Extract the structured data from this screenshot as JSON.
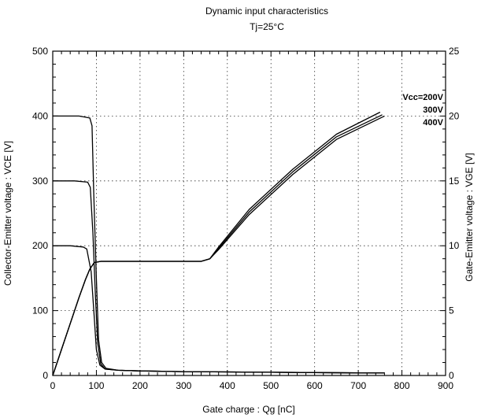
{
  "chart_data": {
    "type": "line",
    "title": "Dynamic  input  characteristics",
    "subtitle": "Tj=25°C",
    "xlabel": "Gate  charge  :  Qg  [nC]",
    "ylabel_left": "Collector-Emitter  voltage  :  VCE  [V]",
    "ylabel_right": "Gate-Emitter  voltage  :  VGE  [V]",
    "xlim": [
      0,
      900
    ],
    "ylim_left": [
      0,
      500
    ],
    "ylim_right": [
      0,
      25
    ],
    "x_ticks": [
      "0",
      "100",
      "200",
      "300",
      "400",
      "500",
      "600",
      "700",
      "800",
      "900"
    ],
    "y_left_ticks": [
      "0",
      "100",
      "200",
      "300",
      "400",
      "500"
    ],
    "y_right_ticks": [
      "0",
      "5",
      "10",
      "15",
      "20",
      "25"
    ],
    "grid": true,
    "annotations": [
      "Vcc=200V",
      "300V",
      "400V"
    ],
    "series": [
      {
        "axis": "left",
        "x": [
          0,
          40,
          70,
          78,
          88,
          95,
          100,
          108,
          120,
          150,
          200,
          300,
          500,
          700,
          760
        ],
        "y": [
          200,
          200,
          198,
          195,
          160,
          90,
          40,
          16,
          10,
          8,
          7,
          6,
          5,
          4,
          4
        ]
      },
      {
        "axis": "left",
        "x": [
          0,
          50,
          80,
          86,
          92,
          98,
          103,
          110,
          120,
          150,
          200,
          300,
          500,
          700,
          760
        ],
        "y": [
          300,
          300,
          298,
          290,
          220,
          120,
          50,
          18,
          10,
          8,
          7,
          6,
          5,
          4,
          4
        ]
      },
      {
        "axis": "left",
        "x": [
          0,
          60,
          85,
          90,
          94,
          100,
          105,
          112,
          122,
          150,
          200,
          300,
          500,
          700,
          760
        ],
        "y": [
          400,
          400,
          397,
          385,
          280,
          150,
          55,
          20,
          11,
          8,
          7,
          6,
          5,
          4,
          4
        ]
      },
      {
        "axis": "right",
        "x": [
          0,
          20,
          40,
          60,
          75,
          85,
          95,
          110,
          150,
          250,
          340,
          360,
          380,
          450,
          550,
          650,
          750
        ],
        "y": [
          0,
          2.0,
          4.0,
          6.0,
          7.4,
          8.2,
          8.7,
          8.8,
          8.8,
          8.8,
          8.8,
          9.0,
          9.9,
          12.8,
          15.9,
          18.6,
          20.3
        ]
      },
      {
        "axis": "right",
        "x": [
          0,
          20,
          40,
          60,
          75,
          85,
          95,
          110,
          150,
          250,
          340,
          360,
          380,
          450,
          550,
          650,
          755
        ],
        "y": [
          0,
          2.0,
          4.0,
          6.0,
          7.4,
          8.2,
          8.7,
          8.8,
          8.8,
          8.8,
          8.8,
          9.0,
          9.8,
          12.6,
          15.7,
          18.4,
          20.1
        ]
      },
      {
        "axis": "right",
        "x": [
          0,
          20,
          40,
          60,
          75,
          85,
          95,
          110,
          150,
          250,
          340,
          360,
          380,
          450,
          550,
          650,
          760
        ],
        "y": [
          0,
          2.0,
          4.0,
          6.0,
          7.4,
          8.2,
          8.7,
          8.8,
          8.8,
          8.8,
          8.8,
          9.0,
          9.7,
          12.4,
          15.5,
          18.2,
          20.0
        ]
      }
    ]
  }
}
